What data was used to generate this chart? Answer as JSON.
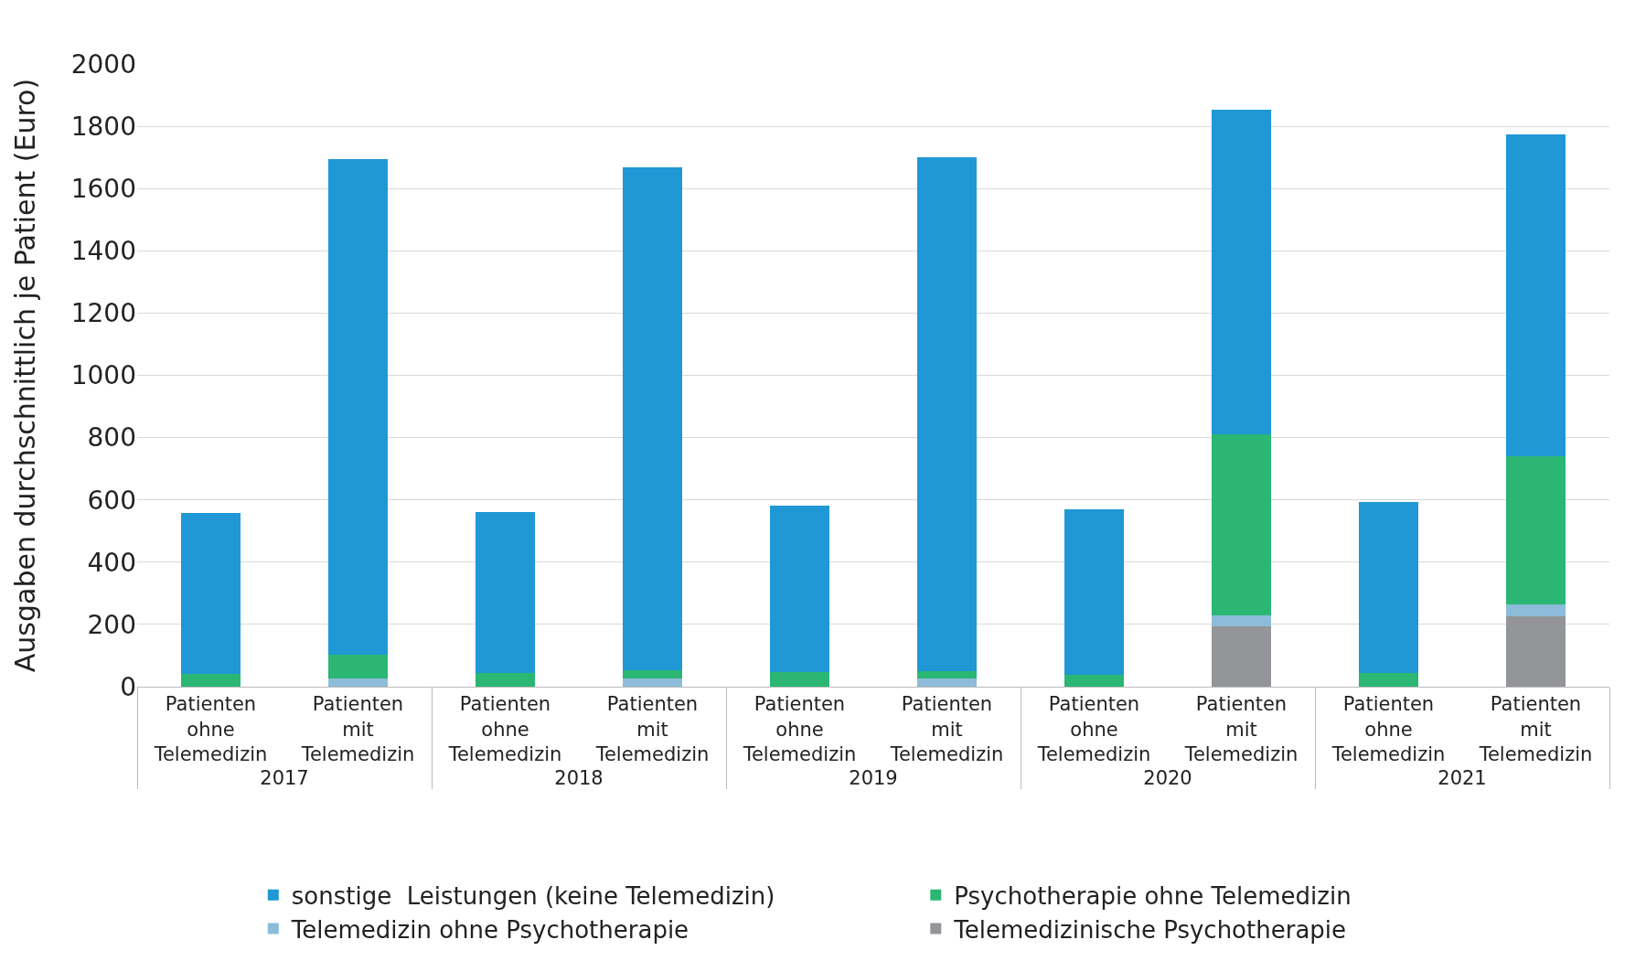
{
  "chart_data": {
    "type": "bar",
    "ylabel": "Ausgaben durchschnittlich je Patient (Euro)",
    "categories": [
      "Patienten ohne Telemedizin",
      "Patienten mit Telemedizin",
      "Patienten ohne Telemedizin",
      "Patienten mit Telemedizin",
      "Patienten ohne Telemedizin",
      "Patienten mit Telemedizin",
      "Patienten ohne Telemedizin",
      "Patienten mit Telemedizin",
      "Patienten ohne Telemedizin",
      "Patienten mit Telemedizin"
    ],
    "annotations": [
      "2017",
      "2018",
      "2019",
      "2020",
      "2021"
    ],
    "stacked": true,
    "series": [
      {
        "name": "Telemedizinische Psychotherapie",
        "color": "#939598",
        "values": [
          0,
          0,
          0,
          0,
          0,
          0,
          0,
          193,
          0,
          225
        ]
      },
      {
        "name": "Telemedizin ohne Psychotherapie",
        "color": "#8cbcd9",
        "values": [
          0,
          25,
          0,
          25,
          0,
          25,
          0,
          36,
          0,
          39
        ]
      },
      {
        "name": "Psychotherapie ohne Telemedizin",
        "color": "#2bb673",
        "values": [
          40,
          79,
          43,
          29,
          46,
          25,
          39,
          582,
          43,
          475
        ]
      },
      {
        "name": "sonstige  Leistungen (keine Telemedizin)",
        "color": "#1f98d5",
        "values": [
          517,
          1592,
          518,
          1614,
          536,
          1650,
          532,
          1043,
          550,
          1036
        ]
      }
    ],
    "ylim": [
      0,
      2000
    ],
    "yticks": [
      0,
      200,
      400,
      600,
      800,
      1000,
      1200,
      1400,
      1600,
      1800,
      2000
    ],
    "grid": "y",
    "legend": "bottom"
  }
}
